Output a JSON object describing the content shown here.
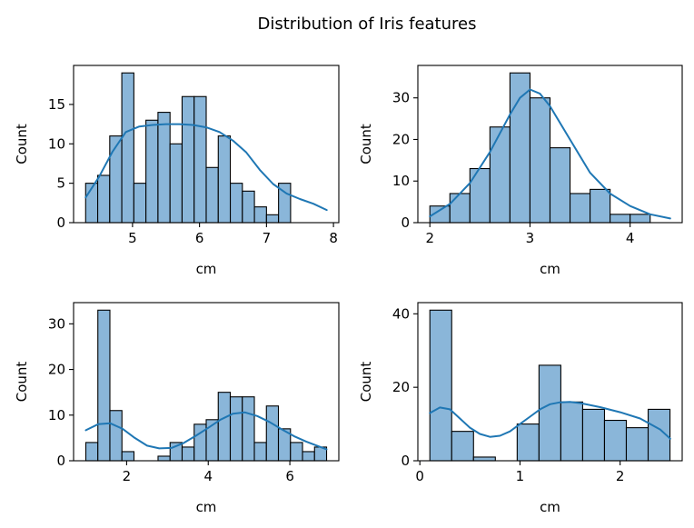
{
  "figure": {
    "title": "Distribution of Iris features"
  },
  "style": {
    "bar_fill": "#8ab6d9",
    "bar_edge": "#000000",
    "kde_color": "#1f77b4",
    "axes_color": "#000000"
  },
  "chart_data": [
    {
      "type": "bar",
      "subtype": "histogram+kde",
      "title": "",
      "xlabel": "cm",
      "ylabel": "Count",
      "xlim": [
        4.12,
        8.08
      ],
      "ylim": [
        0,
        19.95
      ],
      "xticks": [
        5,
        6,
        7,
        8
      ],
      "yticks": [
        0,
        5,
        10,
        15
      ],
      "bin_start": 4.3,
      "bin_width": 0.18,
      "counts": [
        5,
        6,
        11,
        19,
        5,
        13,
        14,
        10,
        16,
        16,
        7,
        11,
        5,
        4,
        2,
        1,
        5
      ],
      "kde": {
        "x": [
          4.3,
          4.5,
          4.7,
          4.9,
          5.1,
          5.3,
          5.5,
          5.7,
          5.9,
          6.1,
          6.3,
          6.5,
          6.7,
          6.9,
          7.1,
          7.3,
          7.5,
          7.7,
          7.9
        ],
        "y": [
          3.2,
          5.8,
          9.0,
          11.5,
          12.2,
          12.4,
          12.5,
          12.5,
          12.4,
          12.1,
          11.5,
          10.4,
          8.9,
          6.7,
          4.9,
          3.7,
          3.0,
          2.4,
          1.6
        ]
      }
    },
    {
      "type": "bar",
      "subtype": "histogram+kde",
      "title": "",
      "xlabel": "cm",
      "ylabel": "Count",
      "xlim": [
        1.88,
        4.52
      ],
      "ylim": [
        0,
        37.8
      ],
      "xticks": [
        2,
        3,
        4
      ],
      "yticks": [
        0,
        10,
        20,
        30
      ],
      "bin_start": 2.0,
      "bin_width": 0.2,
      "counts": [
        4,
        7,
        13,
        23,
        36,
        30,
        18,
        7,
        8,
        2,
        2
      ],
      "kde": {
        "x": [
          2.0,
          2.2,
          2.4,
          2.6,
          2.8,
          2.9,
          3.0,
          3.1,
          3.2,
          3.4,
          3.6,
          3.8,
          4.0,
          4.2,
          4.4
        ],
        "y": [
          1.5,
          4.5,
          9.5,
          17.0,
          26.0,
          30.0,
          32.0,
          31.0,
          28.0,
          20.0,
          12.0,
          7.0,
          4.0,
          2.0,
          1.0
        ]
      }
    },
    {
      "type": "bar",
      "subtype": "histogram+kde",
      "title": "",
      "xlabel": "cm",
      "ylabel": "Count",
      "xlim": [
        0.7,
        7.2
      ],
      "ylim": [
        0,
        34.65
      ],
      "xticks": [
        2,
        4,
        6
      ],
      "yticks": [
        0,
        10,
        20,
        30
      ],
      "bin_start": 1.0,
      "bin_width": 0.295,
      "counts": [
        4,
        33,
        11,
        2,
        0,
        0,
        1,
        4,
        3,
        8,
        9,
        15,
        14,
        14,
        4,
        12,
        7,
        4,
        2,
        3
      ],
      "kde": {
        "x": [
          1.0,
          1.3,
          1.6,
          1.9,
          2.2,
          2.5,
          2.8,
          3.1,
          3.4,
          3.7,
          4.0,
          4.3,
          4.6,
          4.9,
          5.2,
          5.5,
          5.8,
          6.1,
          6.4,
          6.9
        ],
        "y": [
          6.7,
          8.0,
          8.2,
          7.0,
          5.0,
          3.3,
          2.7,
          2.8,
          3.9,
          5.5,
          7.2,
          9.0,
          10.3,
          10.6,
          9.8,
          8.5,
          6.9,
          5.4,
          4.2,
          2.5
        ]
      }
    },
    {
      "type": "bar",
      "subtype": "histogram+kde",
      "title": "",
      "xlabel": "cm",
      "ylabel": "Count",
      "xlim": [
        -0.02,
        2.62
      ],
      "ylim": [
        0,
        43.05
      ],
      "xticks": [
        0,
        1,
        2
      ],
      "yticks": [
        0,
        20,
        40
      ],
      "bin_start": 0.1,
      "bin_width": 0.218,
      "counts": [
        41,
        8,
        1,
        0,
        10,
        26,
        16,
        14,
        11,
        9,
        14
      ],
      "kde": {
        "x": [
          0.1,
          0.2,
          0.3,
          0.4,
          0.5,
          0.6,
          0.7,
          0.8,
          0.9,
          1.0,
          1.1,
          1.2,
          1.3,
          1.4,
          1.5,
          1.6,
          1.8,
          2.0,
          2.2,
          2.4,
          2.5
        ],
        "y": [
          13.0,
          14.5,
          14.0,
          11.5,
          9.0,
          7.3,
          6.5,
          6.8,
          8.0,
          10.0,
          12.0,
          14.0,
          15.4,
          15.9,
          16.0,
          15.7,
          14.6,
          13.2,
          11.5,
          8.5,
          6.0
        ]
      }
    }
  ]
}
